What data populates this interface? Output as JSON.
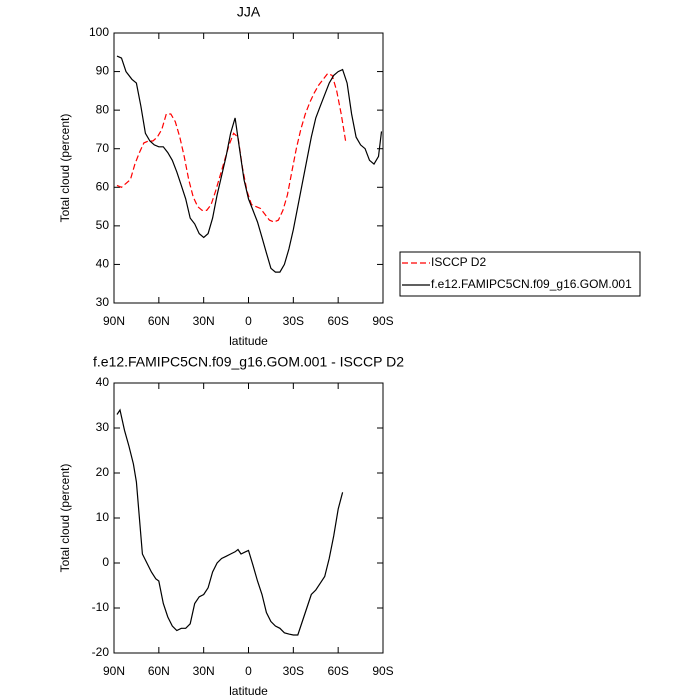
{
  "chart_data": [
    {
      "type": "line",
      "title": "JJA",
      "x_label": "latitude",
      "y_label": "Total cloud (percent)",
      "xlim": [
        90,
        -90
      ],
      "ylim": [
        30,
        100
      ],
      "xticks": [
        {
          "value": 90,
          "label": "90N"
        },
        {
          "value": 60,
          "label": "60N"
        },
        {
          "value": 30,
          "label": "30N"
        },
        0,
        {
          "value": -30,
          "label": "30S"
        },
        {
          "value": -60,
          "label": "60S"
        },
        {
          "value": -90,
          "label": "90S"
        }
      ],
      "yticks": [
        30,
        40,
        50,
        60,
        70,
        80,
        90,
        100
      ],
      "legend": "right",
      "series": [
        {
          "name": "ISCCP D2",
          "color": "#ff0000",
          "line_style": "dashed",
          "x": [
            88,
            85,
            82,
            79,
            76,
            73,
            70,
            67,
            64,
            61,
            58,
            55,
            52,
            49,
            46,
            43,
            40,
            37,
            34,
            31,
            28,
            25,
            22,
            19,
            16,
            13,
            10,
            7,
            4,
            1,
            -2,
            -5,
            -8,
            -11,
            -14,
            -17,
            -20,
            -23,
            -26,
            -29,
            -32,
            -35,
            -38,
            -41,
            -44,
            -47,
            -50,
            -53,
            -56,
            -59,
            -62,
            -65
          ],
          "values": [
            60.5,
            60,
            61,
            62,
            66,
            69,
            71.5,
            72,
            72,
            73,
            75,
            79,
            79,
            77,
            73,
            68,
            62,
            57.5,
            55,
            54,
            54,
            55.5,
            59,
            63,
            67,
            71,
            74,
            73,
            65,
            59,
            55.5,
            55,
            54.5,
            53,
            51.5,
            51,
            51.5,
            54,
            58,
            64,
            70,
            75,
            79,
            82,
            84.5,
            86.5,
            88,
            89.5,
            89,
            85,
            79,
            72
          ]
        },
        {
          "name": "f.e12.FAMIPC5CN.f09_g16.GOM.001",
          "color": "#000000",
          "line_style": "solid",
          "x": [
            88,
            85,
            82,
            78,
            75,
            72,
            69,
            66,
            63,
            60,
            57,
            54,
            51,
            48,
            45,
            42,
            39,
            36,
            33,
            30,
            27,
            24,
            21,
            18,
            15,
            12,
            9,
            6,
            3,
            0,
            -3,
            -6,
            -9,
            -12,
            -15,
            -18,
            -21,
            -24,
            -27,
            -30,
            -33,
            -36,
            -39,
            -42,
            -45,
            -48,
            -51,
            -54,
            -57,
            -60,
            -63,
            -66,
            -69,
            -72,
            -75,
            -78,
            -81,
            -84,
            -87,
            -89
          ],
          "values": [
            94,
            93.5,
            90,
            88,
            87,
            81,
            74,
            72,
            71,
            70.5,
            70.5,
            69,
            67,
            64,
            60.5,
            57,
            52,
            50.5,
            48,
            47,
            48,
            52,
            58,
            63,
            68,
            74,
            78,
            70,
            62,
            57,
            54,
            51,
            47,
            43,
            39,
            38,
            38,
            40,
            44,
            49,
            55,
            61,
            67,
            73,
            78,
            81,
            84,
            87,
            89,
            90,
            90.5,
            87,
            79,
            73,
            71,
            70,
            67,
            66,
            68,
            74.5
          ]
        }
      ]
    },
    {
      "type": "line",
      "title": "f.e12.FAMIPC5CN.f09_g16.GOM.001 - ISCCP D2",
      "x_label": "latitude",
      "y_label": "Total cloud (percent)",
      "xlim": [
        90,
        -90
      ],
      "ylim": [
        -20,
        40
      ],
      "xticks": [
        {
          "value": 90,
          "label": "90N"
        },
        {
          "value": 60,
          "label": "60N"
        },
        {
          "value": 30,
          "label": "30N"
        },
        0,
        {
          "value": -30,
          "label": "30S"
        },
        {
          "value": -60,
          "label": "60S"
        },
        {
          "value": -90,
          "label": "90S"
        }
      ],
      "yticks": [
        -20,
        -10,
        0,
        10,
        20,
        30,
        40
      ],
      "series": [
        {
          "color": "#000000",
          "line_style": "solid",
          "x": [
            88,
            86,
            83,
            80,
            77,
            75,
            71,
            68,
            65,
            62,
            60,
            57,
            54,
            51,
            48,
            45,
            42,
            39,
            36,
            33,
            30,
            27,
            24,
            21,
            18,
            15,
            12,
            9,
            7,
            5,
            2,
            0,
            -3,
            -6,
            -9,
            -12,
            -15,
            -18,
            -21,
            -24,
            -27,
            -30,
            -33,
            -36,
            -39,
            -42,
            -45,
            -48,
            -51,
            -54,
            -57,
            -60,
            -63
          ],
          "values": [
            33,
            34,
            29.5,
            26,
            22,
            18,
            2,
            0,
            -2,
            -3.5,
            -4,
            -9,
            -12,
            -14,
            -15,
            -14.5,
            -14.5,
            -13.5,
            -9,
            -7.5,
            -7,
            -5.5,
            -2,
            0,
            1,
            1.5,
            2,
            2.5,
            3,
            2,
            2.5,
            2.8,
            -0.5,
            -4,
            -7,
            -11,
            -13,
            -14,
            -14.5,
            -15.5,
            -15.8,
            -16,
            -16,
            -13,
            -10,
            -7,
            -6,
            -4.5,
            -3,
            1,
            6,
            12,
            15.7
          ]
        }
      ]
    }
  ]
}
